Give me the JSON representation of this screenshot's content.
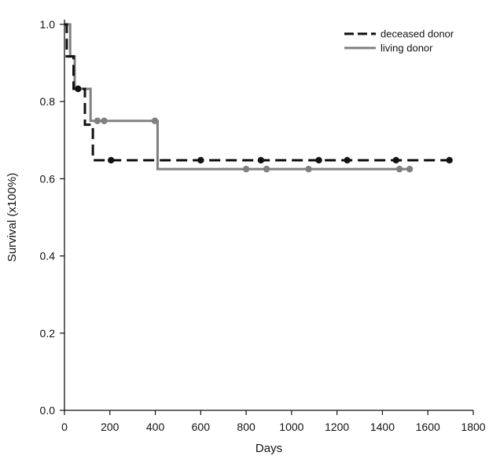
{
  "chart_data": {
    "type": "line",
    "step": true,
    "xlabel": "Days",
    "ylabel": "Survival (x100%)",
    "xlim": [
      0,
      1800
    ],
    "ylim": [
      0,
      1.0
    ],
    "xticks": [
      "0",
      "200",
      "400",
      "600",
      "800",
      "1000",
      "1200",
      "1400",
      "1600",
      "1800"
    ],
    "yticks": [
      "0.0",
      "0.2",
      "0.4",
      "0.6",
      "0.8",
      "1.0"
    ],
    "grid": false,
    "legend_position": "top-right",
    "series": [
      {
        "name": "deceased donor",
        "line_style": "dashed",
        "color": "#111111",
        "steps": [
          {
            "x": 0,
            "y": 1.0
          },
          {
            "x": 10,
            "y": 0.917
          },
          {
            "x": 40,
            "y": 0.833
          },
          {
            "x": 90,
            "y": 0.74
          },
          {
            "x": 125,
            "y": 0.648
          },
          {
            "x": 1700,
            "y": 0.648
          }
        ],
        "censored": [
          {
            "x": 60,
            "y": 0.833
          },
          {
            "x": 205,
            "y": 0.648
          },
          {
            "x": 600,
            "y": 0.648
          },
          {
            "x": 865,
            "y": 0.648
          },
          {
            "x": 1120,
            "y": 0.648
          },
          {
            "x": 1245,
            "y": 0.648
          },
          {
            "x": 1460,
            "y": 0.648
          },
          {
            "x": 1695,
            "y": 0.648
          }
        ]
      },
      {
        "name": "living donor",
        "line_style": "solid",
        "color": "#808080",
        "steps": [
          {
            "x": 0,
            "y": 1.0
          },
          {
            "x": 25,
            "y": 0.917
          },
          {
            "x": 45,
            "y": 0.833
          },
          {
            "x": 115,
            "y": 0.75
          },
          {
            "x": 410,
            "y": 0.625
          },
          {
            "x": 1525,
            "y": 0.625
          }
        ],
        "censored": [
          {
            "x": 145,
            "y": 0.75
          },
          {
            "x": 175,
            "y": 0.75
          },
          {
            "x": 398,
            "y": 0.75
          },
          {
            "x": 800,
            "y": 0.625
          },
          {
            "x": 890,
            "y": 0.625
          },
          {
            "x": 1075,
            "y": 0.625
          },
          {
            "x": 1475,
            "y": 0.625
          },
          {
            "x": 1520,
            "y": 0.625
          }
        ]
      }
    ]
  }
}
